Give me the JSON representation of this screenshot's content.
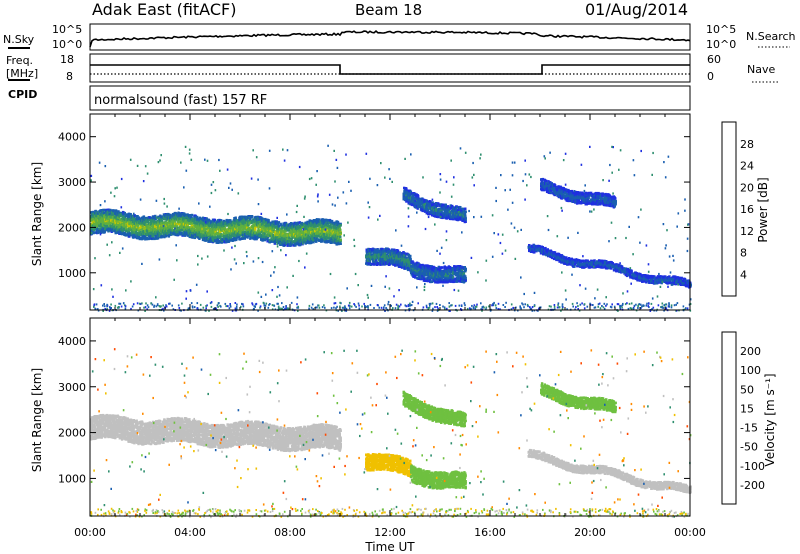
{
  "header": {
    "station": "Adak East (fitACF)",
    "beam": "Beam 18",
    "date": "01/Aug/2014"
  },
  "noise_panel": {
    "left_label": "N.Sky",
    "right_label": "N.Search",
    "left_ticks": [
      "10^5",
      "10^0"
    ],
    "right_ticks": [
      "10^5",
      "10^0"
    ]
  },
  "freq_panel": {
    "left_label_line1": "Freq.",
    "left_label_line2": "[MHz]",
    "cpid_label": "CPID",
    "right_label": "Nave",
    "left_ticks": [
      "18",
      "8"
    ],
    "right_ticks": [
      "60",
      "0"
    ]
  },
  "cpid": {
    "text": "normalsound (fast) 157 RF"
  },
  "power_panel": {
    "ylabel": "Slant Range [km]",
    "yticks": [
      "4000",
      "3000",
      "2000",
      "1000"
    ],
    "colorbar_label": "Power [dB]",
    "colorbar_ticks": [
      "28",
      "24",
      "20",
      "16",
      "12",
      "8",
      "4"
    ],
    "colors": [
      "#1f30e0",
      "#1a5fb0",
      "#2f8f6f",
      "#5fb040",
      "#c8c800",
      "#ff9a00",
      "#ff5a00",
      "#e00000"
    ]
  },
  "velocity_panel": {
    "ylabel": "Slant Range [km]",
    "yticks": [
      "4000",
      "3000",
      "2000",
      "1000"
    ],
    "colorbar_label": "Velocity [m s⁻¹]",
    "colorbar_ticks": [
      "200",
      "100",
      "50",
      "15",
      "-15",
      "-50",
      "-100",
      "-200"
    ],
    "colors": [
      "#1f30e0",
      "#1a5fb0",
      "#2f8f6f",
      "#6fc040",
      "#c0c0c0",
      "#f0c000",
      "#ff8a00",
      "#ff4a00",
      "#e00000"
    ]
  },
  "x_axis": {
    "label": "Time UT",
    "ticks": [
      "00:00",
      "04:00",
      "08:00",
      "12:00",
      "16:00",
      "20:00",
      "00:00"
    ]
  },
  "chart_data": {
    "type": "heatmap",
    "title": "Adak East (fitACF) Beam 18 01/Aug/2014",
    "xlabel": "Time UT",
    "ylabel": "Slant Range [km]",
    "xlim_hours": [
      0,
      24
    ],
    "ylim_km": [
      180,
      4500
    ],
    "frequency_mhz": [
      {
        "start_hour": 0,
        "end_hour": 10,
        "value": 12
      },
      {
        "start_hour": 10,
        "end_hour": 18,
        "value": 10
      },
      {
        "start_hour": 18,
        "end_hour": 24,
        "value": 12
      }
    ],
    "echo_regions": [
      {
        "t0": 0.0,
        "t1": 10.0,
        "r_center_start": 2100,
        "r_center_end": 1850,
        "width_km": 500,
        "power_db": 16,
        "velocity": 0
      },
      {
        "t0": 11.0,
        "t1": 12.8,
        "r_center_start": 1400,
        "r_center_end": 1200,
        "width_km": 350,
        "power_db": 10,
        "velocity": -40
      },
      {
        "t0": 12.8,
        "t1": 15.0,
        "r_center_start": 1100,
        "r_center_end": 900,
        "width_km": 350,
        "power_db": 8,
        "velocity": 30
      },
      {
        "t0": 12.5,
        "t1": 15.0,
        "r_center_start": 2700,
        "r_center_end": 2200,
        "width_km": 300,
        "power_db": 8,
        "velocity": 40
      },
      {
        "t0": 17.5,
        "t1": 24.0,
        "r_center_start": 1500,
        "r_center_end": 700,
        "width_km": 160,
        "power_db": 6,
        "velocity": 0
      },
      {
        "t0": 18.0,
        "t1": 21.0,
        "r_center_start": 2900,
        "r_center_end": 2500,
        "width_km": 250,
        "power_db": 6,
        "velocity": 30
      }
    ]
  }
}
